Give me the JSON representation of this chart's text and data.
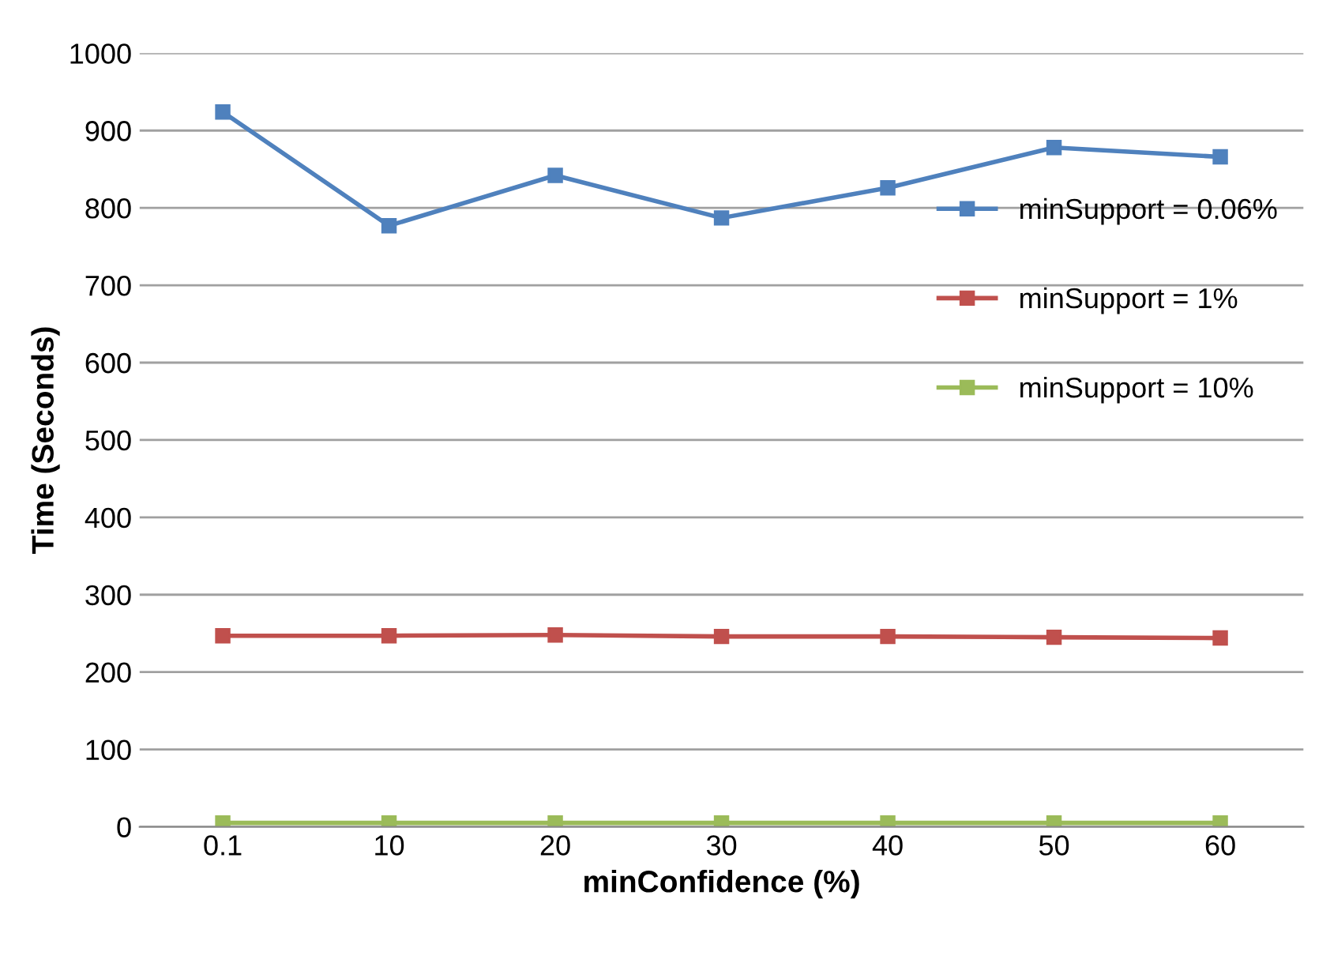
{
  "chart_data": {
    "type": "line",
    "xlabel": "minConfidence (%)",
    "ylabel": "Time (Seconds)",
    "categories": [
      "0.1",
      "10",
      "20",
      "30",
      "40",
      "50",
      "60"
    ],
    "series": [
      {
        "name": "minSupport = 0.06%",
        "color": "#4f81bd",
        "values": [
          924,
          777,
          842,
          787,
          826,
          878,
          866
        ]
      },
      {
        "name": "minSupport = 1%",
        "color": "#c0504d",
        "values": [
          247,
          247,
          248,
          246,
          246,
          245,
          244
        ]
      },
      {
        "name": "minSupport = 10%",
        "color": "#9bbb59",
        "values": [
          5,
          5,
          5,
          5,
          5,
          5,
          5
        ]
      }
    ],
    "ylim": [
      0,
      1000
    ],
    "yticks": [
      0,
      100,
      200,
      300,
      400,
      500,
      600,
      700,
      800,
      900,
      1000
    ],
    "grid": "y",
    "legend": "right",
    "marker": "square",
    "line_style": "solid"
  }
}
